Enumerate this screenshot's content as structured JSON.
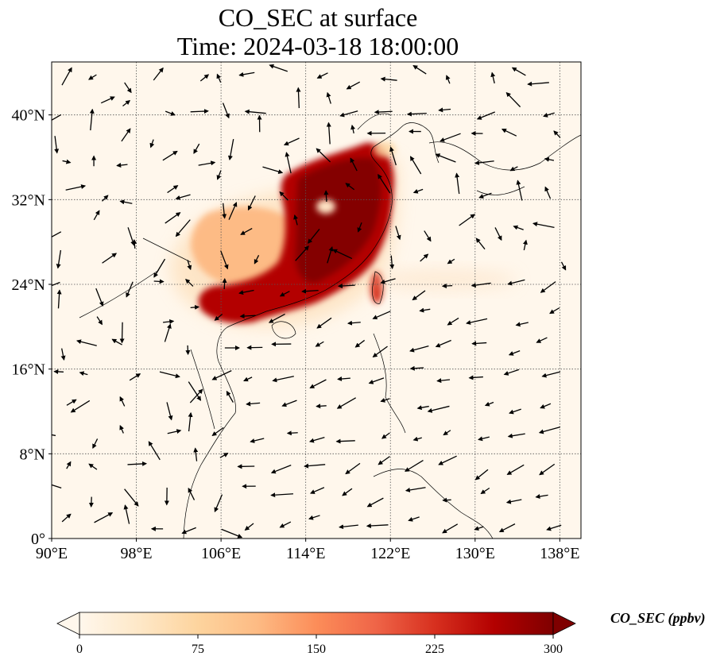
{
  "chart_data": {
    "type": "heatmap",
    "title": "CO_SEC at surface",
    "subtitle": "Time: 2024-03-18 18:00:00",
    "xlabel": "",
    "ylabel": "",
    "xlim": [
      90,
      140
    ],
    "ylim": [
      0,
      45
    ],
    "x_ticks": [
      90,
      98,
      106,
      114,
      122,
      130,
      138
    ],
    "y_ticks": [
      0,
      8,
      16,
      24,
      32,
      40
    ],
    "x_tick_labels": [
      "90°E",
      "98°E",
      "106°E",
      "114°E",
      "122°E",
      "130°E",
      "138°E"
    ],
    "y_tick_labels": [
      "0°",
      "8°N",
      "16°N",
      "24°N",
      "32°N",
      "40°N"
    ],
    "grid": true,
    "colorbar": {
      "label": "CO_SEC (ppbv)",
      "min": 0,
      "max": 300,
      "ticks": [
        0,
        75,
        150,
        225,
        300
      ],
      "extend": "both",
      "colormap": "OrRd",
      "colors": [
        "#fff7ec",
        "#fee8c8",
        "#fdd49e",
        "#fdbb84",
        "#fc8d59",
        "#ef6548",
        "#d7301f",
        "#b30000",
        "#7f0000"
      ]
    },
    "plumes": [
      {
        "lon": 117.5,
        "lat": 31.5,
        "value": 300
      },
      {
        "lon": 116.0,
        "lat": 29.5,
        "value": 280
      },
      {
        "lon": 119.5,
        "lat": 32.5,
        "value": 260
      },
      {
        "lon": 113.5,
        "lat": 27.5,
        "value": 240
      },
      {
        "lon": 113.0,
        "lat": 24.0,
        "value": 220
      },
      {
        "lon": 108.5,
        "lat": 22.0,
        "value": 200
      },
      {
        "lon": 105.0,
        "lat": 28.5,
        "value": 90
      },
      {
        "lon": 109.0,
        "lat": 27.5,
        "value": 110
      },
      {
        "lon": 120.5,
        "lat": 23.5,
        "value": 230
      },
      {
        "lon": 122.0,
        "lat": 37.0,
        "value": 60
      },
      {
        "lon": 126.0,
        "lat": 24.0,
        "value": 25
      }
    ],
    "wind_field": "quiver arrows (north-easterly flow over South China Sea)"
  }
}
